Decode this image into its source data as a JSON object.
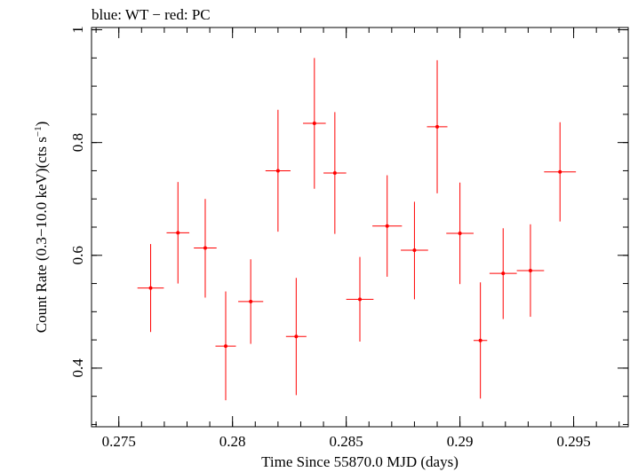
{
  "chart_data": {
    "type": "scatter",
    "title": "blue: WT − red: PC",
    "xlabel": "Time Since 55870.0 MJD (days)",
    "ylabel_main": "Count Rate (0.3−10.0 keV)(cts s",
    "ylabel_sup": "−1",
    "ylabel_close": ")",
    "xlim": [
      0.2738,
      0.2974
    ],
    "ylim": [
      0.296,
      1.004
    ],
    "x_ticks": [
      0.275,
      0.28,
      0.285,
      0.29,
      0.295
    ],
    "x_tick_labels": [
      "0.275",
      "0.28",
      "0.285",
      "0.29",
      "0.295"
    ],
    "y_ticks": [
      0.4,
      0.6,
      0.8,
      1
    ],
    "y_tick_labels": [
      "0.4",
      "0.6",
      "0.8",
      "1"
    ],
    "grid": false,
    "series": [
      {
        "color": "#ff0000",
        "points": [
          {
            "x": 0.2764,
            "y": 0.542,
            "xerr": 0.00058,
            "yerr_lo": 0.078,
            "yerr_hi": 0.078
          },
          {
            "x": 0.2776,
            "y": 0.64,
            "xerr": 0.0005,
            "yerr_lo": 0.09,
            "yerr_hi": 0.09
          },
          {
            "x": 0.2788,
            "y": 0.613,
            "xerr": 0.0005,
            "yerr_lo": 0.088,
            "yerr_hi": 0.087
          },
          {
            "x": 0.2797,
            "y": 0.439,
            "xerr": 0.00045,
            "yerr_lo": 0.096,
            "yerr_hi": 0.097
          },
          {
            "x": 0.2808,
            "y": 0.518,
            "xerr": 0.00055,
            "yerr_lo": 0.075,
            "yerr_hi": 0.075
          },
          {
            "x": 0.282,
            "y": 0.75,
            "xerr": 0.00055,
            "yerr_lo": 0.108,
            "yerr_hi": 0.108
          },
          {
            "x": 0.2828,
            "y": 0.456,
            "xerr": 0.00045,
            "yerr_lo": 0.104,
            "yerr_hi": 0.104
          },
          {
            "x": 0.2836,
            "y": 0.834,
            "xerr": 0.0005,
            "yerr_lo": 0.116,
            "yerr_hi": 0.116
          },
          {
            "x": 0.2845,
            "y": 0.746,
            "xerr": 0.0005,
            "yerr_lo": 0.108,
            "yerr_hi": 0.108
          },
          {
            "x": 0.2856,
            "y": 0.522,
            "xerr": 0.0006,
            "yerr_lo": 0.075,
            "yerr_hi": 0.075
          },
          {
            "x": 0.2868,
            "y": 0.652,
            "xerr": 0.00065,
            "yerr_lo": 0.09,
            "yerr_hi": 0.09
          },
          {
            "x": 0.288,
            "y": 0.609,
            "xerr": 0.0006,
            "yerr_lo": 0.087,
            "yerr_hi": 0.086
          },
          {
            "x": 0.289,
            "y": 0.828,
            "xerr": 0.00045,
            "yerr_lo": 0.118,
            "yerr_hi": 0.118
          },
          {
            "x": 0.29,
            "y": 0.639,
            "xerr": 0.0006,
            "yerr_lo": 0.09,
            "yerr_hi": 0.09
          },
          {
            "x": 0.2909,
            "y": 0.449,
            "xerr": 0.0003,
            "yerr_lo": 0.103,
            "yerr_hi": 0.103
          },
          {
            "x": 0.2919,
            "y": 0.568,
            "xerr": 0.0006,
            "yerr_lo": 0.081,
            "yerr_hi": 0.08
          },
          {
            "x": 0.2931,
            "y": 0.573,
            "xerr": 0.0006,
            "yerr_lo": 0.082,
            "yerr_hi": 0.082
          },
          {
            "x": 0.2944,
            "y": 0.748,
            "xerr": 0.0007,
            "yerr_lo": 0.088,
            "yerr_hi": 0.088
          }
        ]
      }
    ]
  }
}
